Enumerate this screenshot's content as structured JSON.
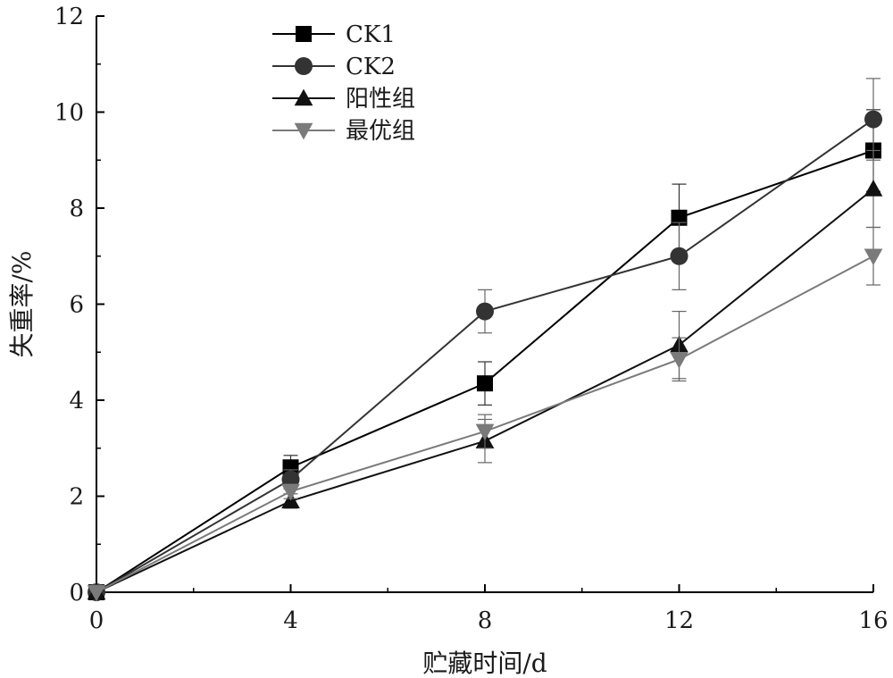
{
  "chart_data": {
    "type": "line",
    "title": "",
    "xlabel": "贮藏时间/d",
    "ylabel": "失重率/%",
    "x": [
      0,
      4,
      8,
      12,
      16
    ],
    "xlim": [
      0,
      16
    ],
    "ylim": [
      0,
      12
    ],
    "xticks": [
      "0",
      "4",
      "8",
      "12",
      "16"
    ],
    "yticks": [
      "0",
      "2",
      "4",
      "6",
      "8",
      "10",
      "12"
    ],
    "grid": false,
    "legend_position": "top-left",
    "series": [
      {
        "name": "CK1",
        "marker": "square",
        "color": "#000000",
        "values": [
          0,
          2.6,
          4.35,
          7.8,
          9.2
        ],
        "errors": [
          0,
          0.25,
          0.45,
          0.7,
          0.85
        ]
      },
      {
        "name": "CK2",
        "marker": "circle",
        "color": "#333333",
        "values": [
          0,
          2.35,
          5.85,
          7.0,
          9.85
        ],
        "errors": [
          0,
          0.2,
          0.45,
          0.7,
          0.85
        ]
      },
      {
        "name": "阳性组",
        "marker": "triangle-up",
        "color": "#111111",
        "values": [
          0,
          1.9,
          3.15,
          5.15,
          8.4
        ],
        "errors": [
          0,
          0.15,
          0.45,
          0.7,
          0.8
        ]
      },
      {
        "name": "最优组",
        "marker": "triangle-down",
        "color": "#7a7a7a",
        "values": [
          0,
          2.1,
          3.35,
          4.85,
          7.0
        ],
        "errors": [
          0,
          0.15,
          0.35,
          0.45,
          0.6
        ]
      }
    ]
  }
}
